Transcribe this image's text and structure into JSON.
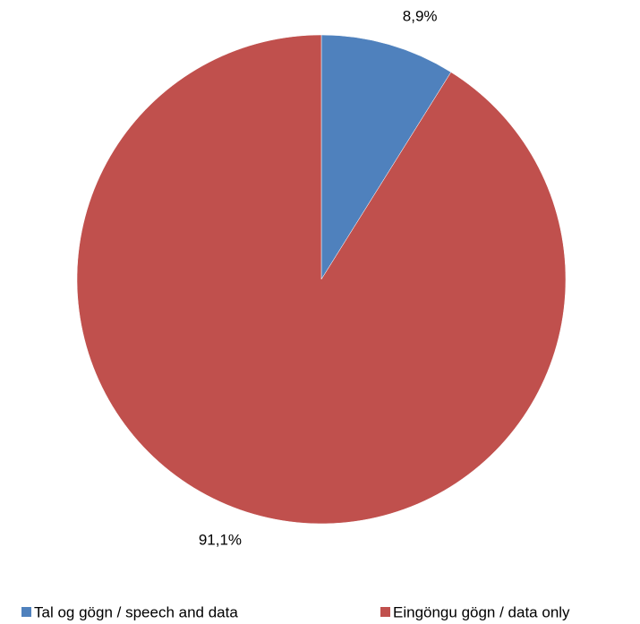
{
  "chart_data": {
    "type": "pie",
    "categories": [
      "Tal og gögn / speech and data",
      "Eingöngu gögn / data only"
    ],
    "values": [
      8.9,
      91.1
    ],
    "value_labels": [
      "8,9%",
      "91,1%"
    ],
    "colors": [
      "#4f81bd",
      "#c0504d"
    ],
    "legend": "bottom"
  }
}
